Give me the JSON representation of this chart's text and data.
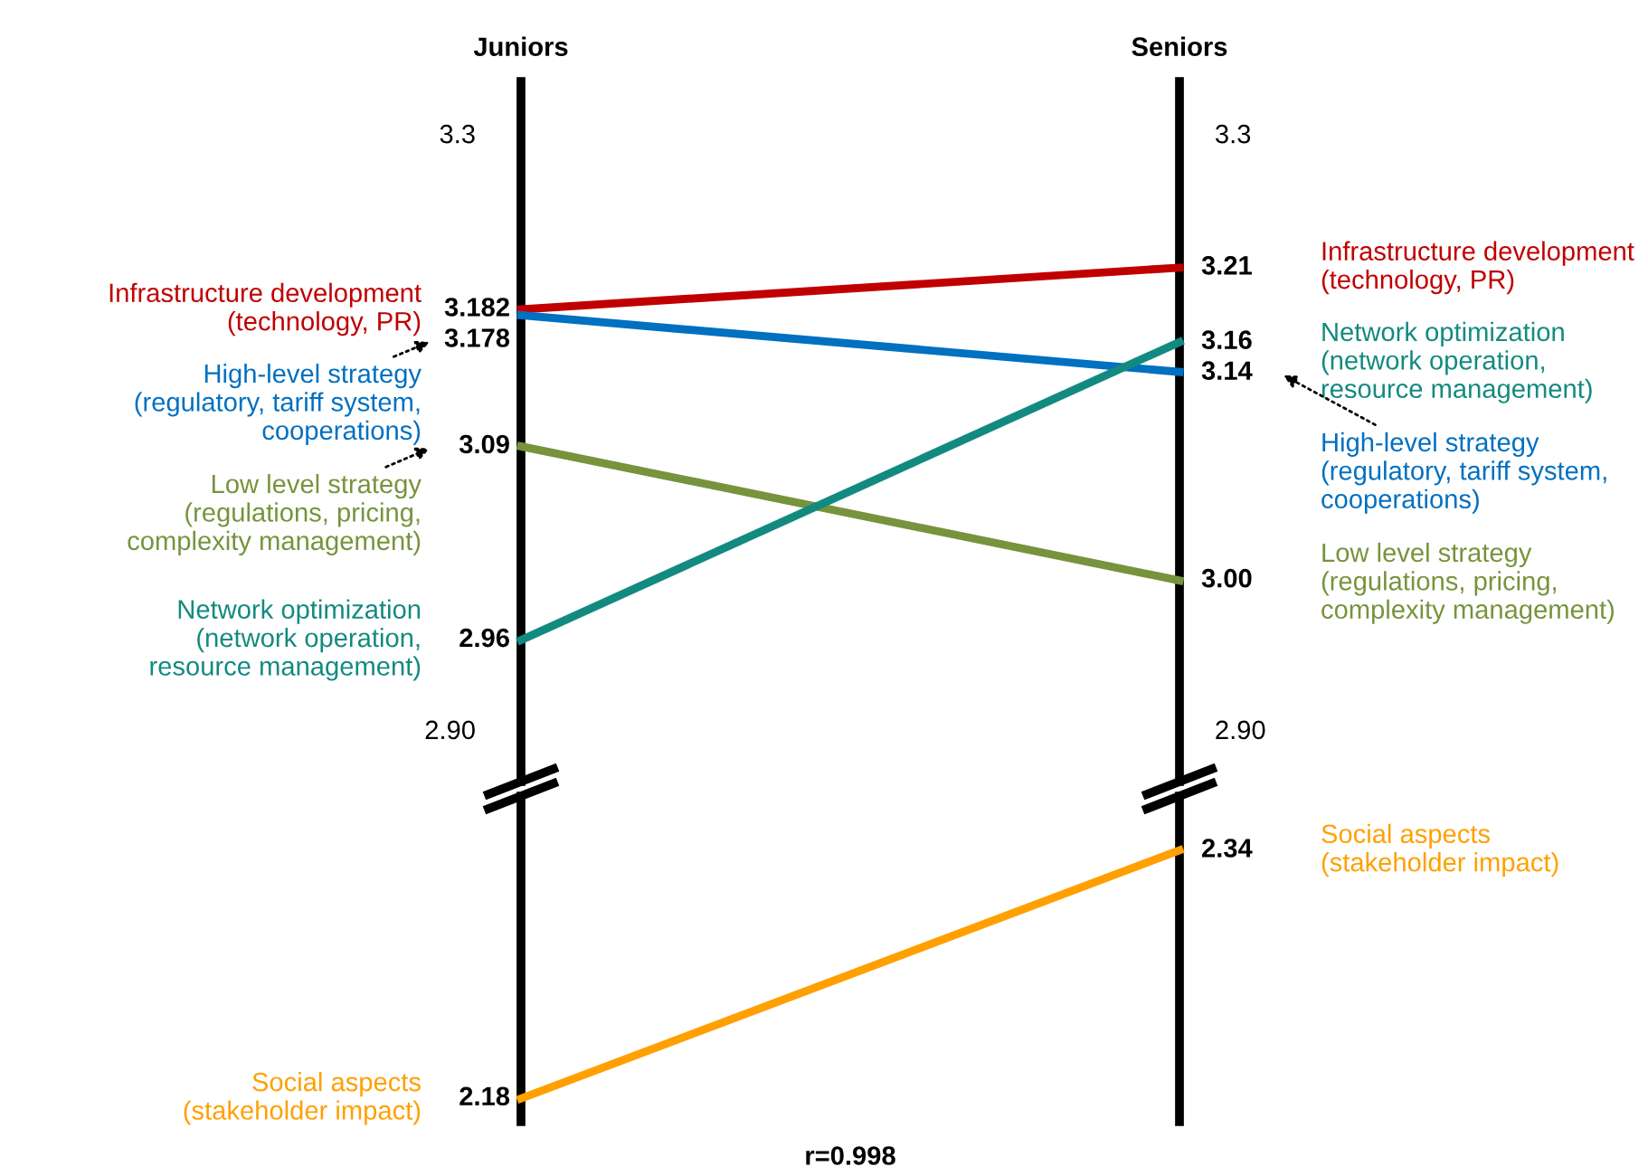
{
  "chart_data": [
    {
      "type": "line",
      "categories": [
        "Juniors",
        "Seniors"
      ],
      "ylim": [
        2.865,
        3.335
      ],
      "yticks": [
        3.3,
        {
          "value": 2.9,
          "label": "2.90"
        }
      ],
      "y2lim": [
        2.865,
        3.335
      ],
      "y2ticks": [
        3.3,
        {
          "value": 2.9,
          "label": "2.90"
        }
      ],
      "series": [
        {
          "name": "Infrastructure development\n(technology, PR)",
          "color": "#c00000",
          "values": [
            3.182,
            3.21
          ],
          "value_labels": [
            "3.182",
            "3.21"
          ]
        },
        {
          "name": "High-level strategy\n(regulatory, tariff system,\ncooperations)",
          "color": "#0070c0",
          "values": [
            3.178,
            3.14
          ],
          "value_labels": [
            "3.178",
            "3.14"
          ]
        },
        {
          "name": "Low level strategy\n(regulations, pricing,\ncomplexity management)",
          "color": "#77933c",
          "values": [
            3.09,
            3.0
          ],
          "value_labels": [
            "3.09",
            "3.00"
          ]
        },
        {
          "name": "Network optimization\n(network operation,\nresource management)",
          "color": "#138a80",
          "values": [
            2.96,
            3.16
          ],
          "value_labels": [
            "2.96",
            "3.16"
          ]
        }
      ]
    },
    {
      "type": "line",
      "categories": [
        null,
        null
      ],
      "ylim": [
        2.165,
        2.375
      ],
      "series": [
        {
          "name": "Social aspects\n(stakeholder impact)",
          "color": "#ffa000",
          "values": [
            2.18,
            2.34
          ],
          "value_labels": [
            "2.18",
            "2.34"
          ]
        }
      ],
      "annotations": [
        "r=0.998"
      ]
    }
  ]
}
